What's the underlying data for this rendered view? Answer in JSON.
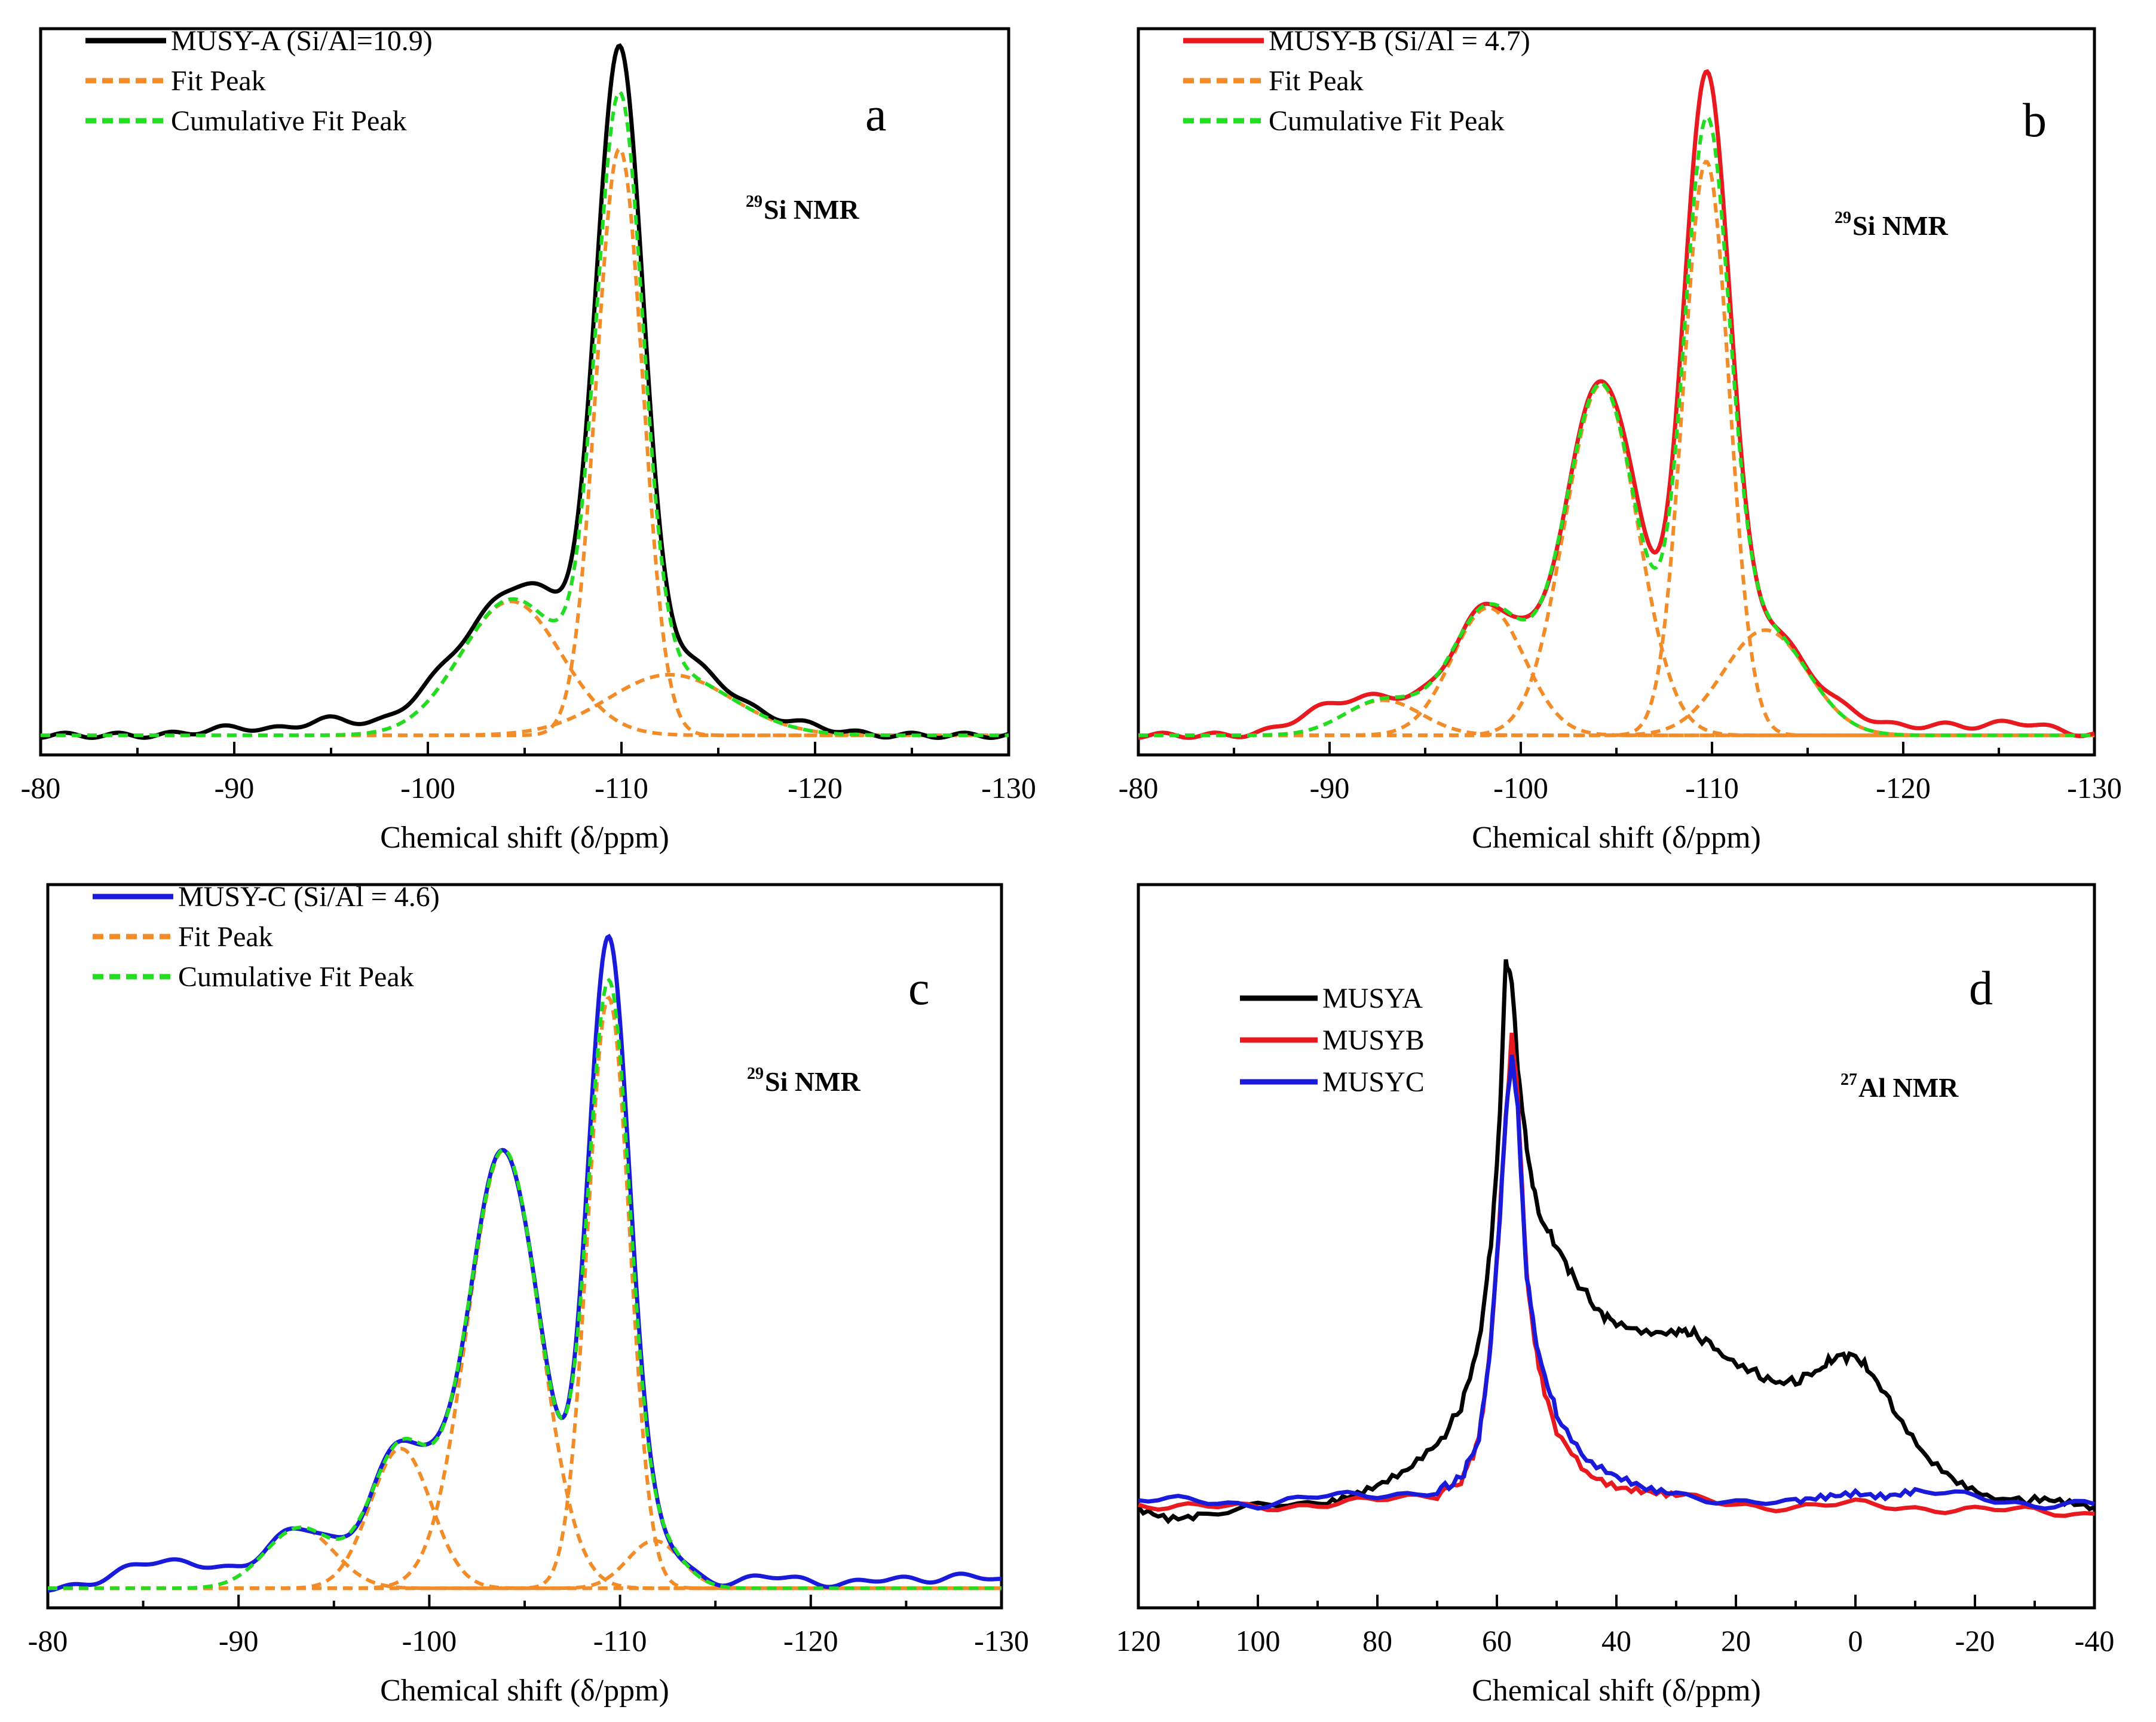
{
  "figure": {
    "description_panels": [
      "a",
      "b",
      "c",
      "d"
    ]
  },
  "chart_data": [
    {
      "id": "a",
      "type": "line",
      "panel_label": "a",
      "nmr_label": {
        "sup": "29",
        "main": "Si NMR"
      },
      "xlabel": "Chemical shift (δ/ppm)",
      "xlim": [
        -80,
        -130
      ],
      "xticks": [
        -80,
        -90,
        -100,
        -110,
        -120,
        -130
      ],
      "legend_position": "top-left",
      "legend": [
        {
          "label": "MUSY-A (Si/Al=10.9)",
          "color": "#000000",
          "style": "solid"
        },
        {
          "label": "Fit Peak",
          "color": "#f28c28",
          "style": "dashed"
        },
        {
          "label": "Cumulative Fit Peak",
          "color": "#22dd22",
          "style": "dashed"
        }
      ],
      "fit_peaks": [
        {
          "center": -104.3,
          "height": 0.21,
          "width": 2.6
        },
        {
          "center": -109.9,
          "height": 0.92,
          "width": 1.2
        },
        {
          "center": -112.5,
          "height": 0.095,
          "width": 3.2
        }
      ],
      "measured_offsets": [
        {
          "x": -100,
          "dy": 0.03
        },
        {
          "x": -95,
          "dy": 0.025
        },
        {
          "x": -90,
          "dy": 0.012
        },
        {
          "x": -106.5,
          "dy": 0.045
        },
        {
          "x": -113.5,
          "dy": 0.025
        },
        {
          "x": -119.5,
          "dy": 0.01
        }
      ]
    },
    {
      "id": "b",
      "type": "line",
      "panel_label": "b",
      "nmr_label": {
        "sup": "29",
        "main": "Si NMR"
      },
      "xlabel": "Chemical shift (δ/ppm)",
      "xlim": [
        -80,
        -130
      ],
      "xticks": [
        -80,
        -90,
        -100,
        -110,
        -120,
        -130
      ],
      "legend_position": "top-left",
      "legend": [
        {
          "label": "MUSY-B (Si/Al = 4.7)",
          "color": "#e8191f",
          "style": "solid"
        },
        {
          "label": "Fit Peak",
          "color": "#f28c28",
          "style": "dashed"
        },
        {
          "label": "Cumulative Fit Peak",
          "color": "#22dd22",
          "style": "dashed"
        }
      ],
      "fit_peaks": [
        {
          "center": -92.8,
          "height": 0.055,
          "width": 2.0
        },
        {
          "center": -98.3,
          "height": 0.2,
          "width": 1.9
        },
        {
          "center": -104.2,
          "height": 0.55,
          "width": 1.9
        },
        {
          "center": -109.7,
          "height": 0.9,
          "width": 1.2
        },
        {
          "center": -112.8,
          "height": 0.165,
          "width": 2.2
        }
      ],
      "measured_offsets": [
        {
          "x": -89.5,
          "dy": 0.03
        },
        {
          "x": -106.8,
          "dy": 0.025
        },
        {
          "x": -117.5,
          "dy": 0.02
        },
        {
          "x": -121.8,
          "dy": 0.015
        },
        {
          "x": -126,
          "dy": 0.02
        }
      ]
    },
    {
      "id": "c",
      "type": "line",
      "panel_label": "c",
      "nmr_label": {
        "sup": "29",
        "main": "Si NMR"
      },
      "xlabel": "Chemical shift (δ/ppm)",
      "xlim": [
        -80,
        -130
      ],
      "xticks": [
        -80,
        -90,
        -100,
        -110,
        -120,
        -130
      ],
      "legend_position": "top-left",
      "legend": [
        {
          "label": "MUSY-C (Si/Al = 4.6)",
          "color": "#1a1adb",
          "style": "solid"
        },
        {
          "label": "Fit Peak",
          "color": "#f28c28",
          "style": "dashed"
        },
        {
          "label": "Cumulative Fit Peak",
          "color": "#22dd22",
          "style": "dashed"
        }
      ],
      "fit_peaks": [
        {
          "center": -93.2,
          "height": 0.095,
          "width": 1.8
        },
        {
          "center": -98.5,
          "height": 0.22,
          "width": 1.6
        },
        {
          "center": -103.9,
          "height": 0.69,
          "width": 1.9
        },
        {
          "center": -109.4,
          "height": 0.93,
          "width": 1.1
        },
        {
          "center": -111.8,
          "height": 0.075,
          "width": 1.4
        }
      ],
      "measured_offsets": [
        {
          "x": -85,
          "dy": 0.035
        },
        {
          "x": -88,
          "dy": 0.03
        },
        {
          "x": -118,
          "dy": 0.02
        },
        {
          "x": -124,
          "dy": 0.015
        },
        {
          "x": -128.5,
          "dy": 0.02
        }
      ]
    },
    {
      "id": "d",
      "type": "line",
      "panel_label": "d",
      "nmr_label": {
        "sup": "27",
        "main": "Al NMR"
      },
      "xlabel": "Chemical shift (δ/ppm)",
      "xlim": [
        120,
        -40
      ],
      "xticks": [
        120,
        100,
        80,
        60,
        40,
        20,
        0,
        -20,
        -40
      ],
      "legend_position": "top-left",
      "series": [
        {
          "name": "MUSYA",
          "color": "#000000",
          "points": [
            [
              120,
              0.14
            ],
            [
              115,
              0.13
            ],
            [
              110,
              0.135
            ],
            [
              100,
              0.145
            ],
            [
              90,
              0.15
            ],
            [
              85,
              0.165
            ],
            [
              80,
              0.18
            ],
            [
              75,
              0.2
            ],
            [
              70,
              0.24
            ],
            [
              66,
              0.3
            ],
            [
              63,
              0.4
            ],
            [
              61,
              0.55
            ],
            [
              59.5,
              0.75
            ],
            [
              58.5,
              1.0
            ],
            [
              57.5,
              0.96
            ],
            [
              56.5,
              0.83
            ],
            [
              55,
              0.7
            ],
            [
              53,
              0.6
            ],
            [
              50,
              0.55
            ],
            [
              47,
              0.5
            ],
            [
              43,
              0.45
            ],
            [
              40,
              0.43
            ],
            [
              35,
              0.42
            ],
            [
              30,
              0.42
            ],
            [
              27,
              0.415
            ],
            [
              23,
              0.39
            ],
            [
              18,
              0.36
            ],
            [
              14,
              0.34
            ],
            [
              10,
              0.34
            ],
            [
              6,
              0.36
            ],
            [
              3,
              0.38
            ],
            [
              0,
              0.38
            ],
            [
              -3,
              0.35
            ],
            [
              -7,
              0.29
            ],
            [
              -12,
              0.22
            ],
            [
              -17,
              0.18
            ],
            [
              -22,
              0.16
            ],
            [
              -30,
              0.155
            ],
            [
              -35,
              0.15
            ],
            [
              -40,
              0.145
            ]
          ]
        },
        {
          "name": "MUSYB",
          "color": "#e8191f",
          "points": [
            [
              120,
              0.15
            ],
            [
              110,
              0.145
            ],
            [
              100,
              0.145
            ],
            [
              90,
              0.15
            ],
            [
              80,
              0.155
            ],
            [
              70,
              0.165
            ],
            [
              66,
              0.185
            ],
            [
              63,
              0.25
            ],
            [
              61,
              0.4
            ],
            [
              59.5,
              0.6
            ],
            [
              58.5,
              0.75
            ],
            [
              57.5,
              0.88
            ],
            [
              56.5,
              0.78
            ],
            [
              55,
              0.5
            ],
            [
              53,
              0.36
            ],
            [
              50,
              0.26
            ],
            [
              45,
              0.2
            ],
            [
              40,
              0.18
            ],
            [
              35,
              0.17
            ],
            [
              30,
              0.16
            ],
            [
              20,
              0.15
            ],
            [
              10,
              0.145
            ],
            [
              0,
              0.15
            ],
            [
              -10,
              0.145
            ],
            [
              -20,
              0.14
            ],
            [
              -30,
              0.14
            ],
            [
              -40,
              0.135
            ]
          ]
        },
        {
          "name": "MUSYC",
          "color": "#1a1adb",
          "points": [
            [
              120,
              0.155
            ],
            [
              110,
              0.155
            ],
            [
              100,
              0.15
            ],
            [
              90,
              0.16
            ],
            [
              80,
              0.165
            ],
            [
              70,
              0.17
            ],
            [
              66,
              0.19
            ],
            [
              63,
              0.25
            ],
            [
              61,
              0.4
            ],
            [
              59.5,
              0.6
            ],
            [
              58.5,
              0.75
            ],
            [
              57.5,
              0.85
            ],
            [
              56.5,
              0.76
            ],
            [
              55,
              0.5
            ],
            [
              53,
              0.38
            ],
            [
              50,
              0.29
            ],
            [
              45,
              0.22
            ],
            [
              40,
              0.19
            ],
            [
              35,
              0.17
            ],
            [
              30,
              0.165
            ],
            [
              20,
              0.155
            ],
            [
              10,
              0.15
            ],
            [
              5,
              0.16
            ],
            [
              0,
              0.17
            ],
            [
              -5,
              0.165
            ],
            [
              -10,
              0.17
            ],
            [
              -20,
              0.16
            ],
            [
              -30,
              0.15
            ],
            [
              -40,
              0.15
            ]
          ]
        }
      ],
      "legend": [
        {
          "label": "MUSYA",
          "color": "#000000",
          "style": "solid"
        },
        {
          "label": "MUSYB",
          "color": "#e8191f",
          "style": "solid"
        },
        {
          "label": "MUSYC",
          "color": "#1a1adb",
          "style": "solid"
        }
      ]
    }
  ]
}
